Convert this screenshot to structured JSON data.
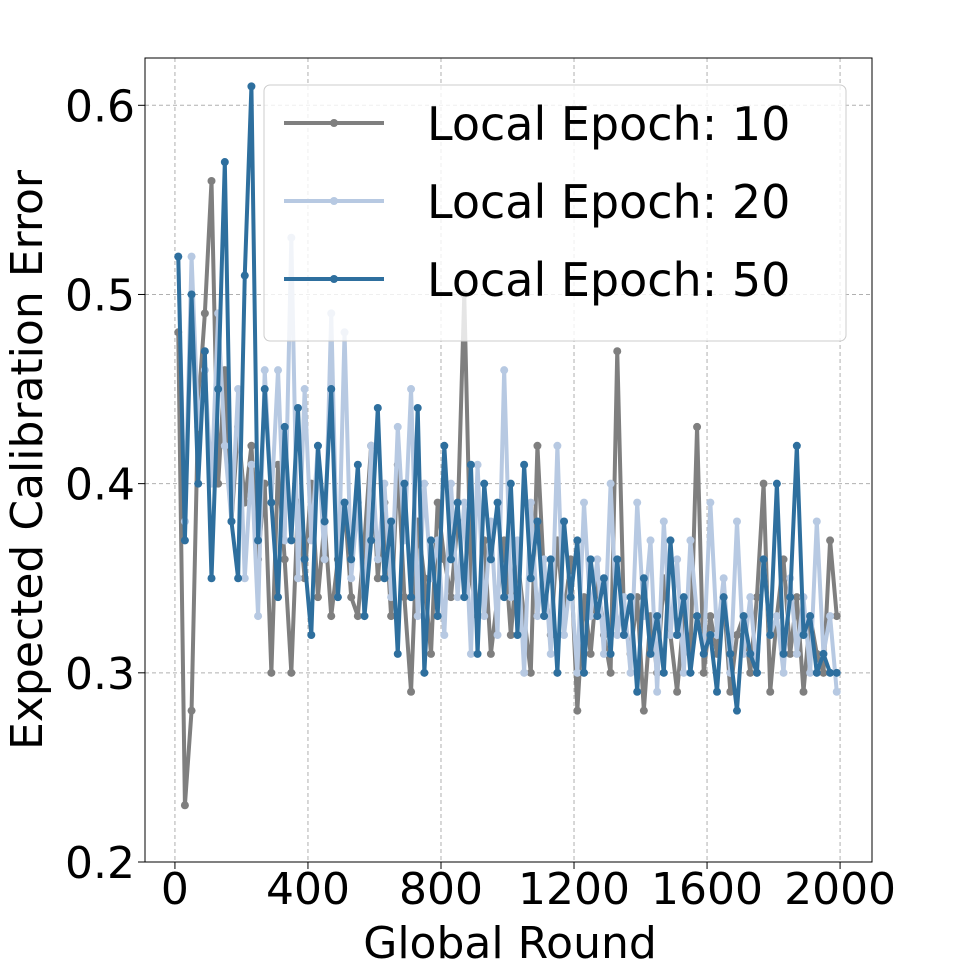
{
  "chart_data": {
    "type": "line",
    "xlabel": "Global Round",
    "ylabel": "Expected Calibration Error",
    "x": [
      10,
      30,
      50,
      70,
      90,
      110,
      130,
      150,
      170,
      190,
      210,
      230,
      250,
      270,
      290,
      310,
      330,
      350,
      370,
      390,
      410,
      430,
      450,
      470,
      490,
      510,
      530,
      550,
      570,
      590,
      610,
      630,
      650,
      670,
      690,
      710,
      730,
      750,
      770,
      790,
      810,
      830,
      850,
      870,
      890,
      910,
      930,
      950,
      970,
      990,
      1010,
      1030,
      1050,
      1070,
      1090,
      1110,
      1130,
      1150,
      1170,
      1190,
      1210,
      1230,
      1250,
      1270,
      1290,
      1310,
      1330,
      1350,
      1370,
      1390,
      1410,
      1430,
      1450,
      1470,
      1490,
      1510,
      1530,
      1550,
      1570,
      1590,
      1610,
      1630,
      1650,
      1670,
      1690,
      1710,
      1730,
      1750,
      1770,
      1790,
      1810,
      1830,
      1850,
      1870,
      1890,
      1910,
      1930,
      1950,
      1970,
      1990
    ],
    "series": [
      {
        "name": "Local Epoch: 10",
        "color": "#7f7f7f",
        "values": [
          0.48,
          0.23,
          0.28,
          0.44,
          0.49,
          0.56,
          0.4,
          0.46,
          0.38,
          0.43,
          0.39,
          0.42,
          0.36,
          0.4,
          0.3,
          0.41,
          0.36,
          0.3,
          0.39,
          0.35,
          0.4,
          0.34,
          0.38,
          0.33,
          0.36,
          0.39,
          0.34,
          0.33,
          0.37,
          0.42,
          0.35,
          0.39,
          0.33,
          0.41,
          0.34,
          0.29,
          0.38,
          0.35,
          0.31,
          0.39,
          0.36,
          0.34,
          0.38,
          0.5,
          0.35,
          0.33,
          0.37,
          0.31,
          0.34,
          0.37,
          0.32,
          0.36,
          0.33,
          0.3,
          0.42,
          0.35,
          0.32,
          0.37,
          0.33,
          0.36,
          0.28,
          0.34,
          0.31,
          0.35,
          0.32,
          0.3,
          0.47,
          0.33,
          0.31,
          0.34,
          0.28,
          0.33,
          0.3,
          0.35,
          0.32,
          0.29,
          0.33,
          0.31,
          0.43,
          0.3,
          0.33,
          0.31,
          0.34,
          0.29,
          0.32,
          0.33,
          0.3,
          0.34,
          0.4,
          0.29,
          0.33,
          0.36,
          0.31,
          0.34,
          0.29,
          0.33,
          0.31,
          0.3,
          0.37,
          0.33
        ]
      },
      {
        "name": "Local Epoch: 20",
        "color": "#b7c9e2",
        "values": [
          0.52,
          0.38,
          0.52,
          0.43,
          0.46,
          0.4,
          0.49,
          0.42,
          0.38,
          0.45,
          0.35,
          0.41,
          0.33,
          0.46,
          0.39,
          0.46,
          0.37,
          0.53,
          0.35,
          0.45,
          0.37,
          0.42,
          0.36,
          0.49,
          0.34,
          0.48,
          0.35,
          0.39,
          0.33,
          0.42,
          0.36,
          0.4,
          0.34,
          0.43,
          0.37,
          0.45,
          0.33,
          0.4,
          0.35,
          0.37,
          0.32,
          0.4,
          0.34,
          0.39,
          0.31,
          0.41,
          0.33,
          0.38,
          0.32,
          0.46,
          0.34,
          0.37,
          0.3,
          0.39,
          0.33,
          0.36,
          0.31,
          0.42,
          0.32,
          0.35,
          0.3,
          0.39,
          0.33,
          0.36,
          0.31,
          0.4,
          0.32,
          0.34,
          0.3,
          0.39,
          0.33,
          0.37,
          0.29,
          0.38,
          0.32,
          0.36,
          0.3,
          0.37,
          0.33,
          0.31,
          0.39,
          0.32,
          0.35,
          0.3,
          0.38,
          0.31,
          0.34,
          0.3,
          0.36,
          0.32,
          0.33,
          0.3,
          0.35,
          0.31,
          0.34,
          0.3,
          0.38,
          0.31,
          0.33,
          0.29
        ]
      },
      {
        "name": "Local Epoch: 50",
        "color": "#2e6f9e",
        "values": [
          0.52,
          0.37,
          0.5,
          0.4,
          0.47,
          0.35,
          0.45,
          0.57,
          0.38,
          0.35,
          0.51,
          0.61,
          0.37,
          0.45,
          0.39,
          0.34,
          0.43,
          0.37,
          0.44,
          0.36,
          0.32,
          0.42,
          0.38,
          0.45,
          0.34,
          0.39,
          0.36,
          0.41,
          0.33,
          0.37,
          0.44,
          0.35,
          0.38,
          0.31,
          0.4,
          0.34,
          0.44,
          0.3,
          0.37,
          0.33,
          0.42,
          0.36,
          0.39,
          0.34,
          0.41,
          0.31,
          0.4,
          0.36,
          0.39,
          0.34,
          0.4,
          0.32,
          0.41,
          0.35,
          0.38,
          0.33,
          0.36,
          0.3,
          0.38,
          0.34,
          0.37,
          0.3,
          0.36,
          0.33,
          0.35,
          0.31,
          0.36,
          0.32,
          0.34,
          0.29,
          0.35,
          0.31,
          0.33,
          0.3,
          0.37,
          0.32,
          0.34,
          0.3,
          0.33,
          0.31,
          0.32,
          0.29,
          0.34,
          0.31,
          0.28,
          0.33,
          0.31,
          0.3,
          0.36,
          0.32,
          0.4,
          0.31,
          0.34,
          0.42,
          0.32,
          0.33,
          0.3,
          0.31,
          0.3,
          0.3
        ]
      }
    ],
    "xlim": [
      -90,
      2096
    ],
    "ylim": [
      0.2,
      0.625
    ],
    "xticks": [
      0,
      400,
      800,
      1200,
      1600,
      2000
    ],
    "yticks": [
      0.2,
      0.3,
      0.4,
      0.5,
      0.6
    ],
    "grid": true,
    "legend": "upper right"
  }
}
